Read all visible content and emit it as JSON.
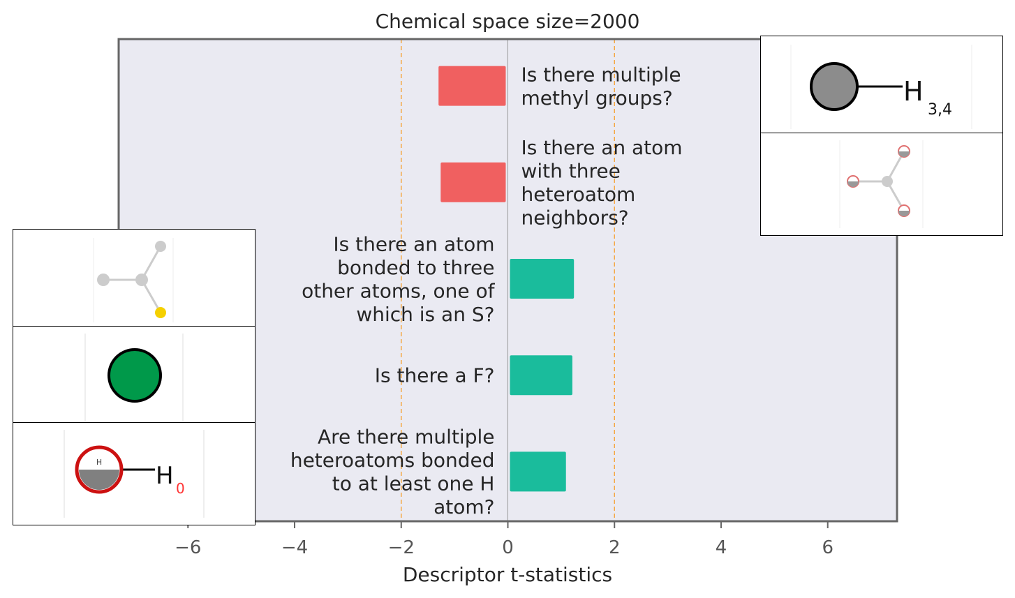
{
  "chart_data": {
    "type": "bar",
    "orientation": "horizontal",
    "title": "Chemical space size=2000",
    "xlabel": "Descriptor t-statistics",
    "ylabel": "",
    "xlim": [
      -7.3,
      7.3
    ],
    "xticks": [
      -6,
      -4,
      -2,
      0,
      2,
      4,
      6
    ],
    "xtick_labels": [
      "−6",
      "−4",
      "−2",
      "0",
      "2",
      "4",
      "6"
    ],
    "significance_lines": [
      -2,
      2
    ],
    "grid": false,
    "bars": [
      {
        "label": "Is there multiple methyl groups?",
        "value": -1.3,
        "color": "#f06060"
      },
      {
        "label": "Is there an atom with three heteroatom neighbors?",
        "value": -1.26,
        "color": "#f06060"
      },
      {
        "label": "Is there an atom bonded to three other atoms, one of which is an S?",
        "value": 1.24,
        "color": "#1abc9c"
      },
      {
        "label": "Is there a F?",
        "value": 1.21,
        "color": "#1abc9c"
      },
      {
        "label": "Are there multiple heteroatoms bonded to at least one H atom?",
        "value": 1.09,
        "color": "#1abc9c"
      }
    ],
    "label_lines": [
      [
        "Is there multiple",
        "methyl groups?"
      ],
      [
        "Is there an atom",
        "with three",
        "heteroatom",
        "neighbors?"
      ],
      [
        "Is there an atom",
        "bonded to three",
        "other atoms, one of",
        "which is an S?"
      ],
      [
        "Is there a F?"
      ],
      [
        "Are there multiple",
        "heteroatoms bonded",
        "to at least one H",
        "atom?"
      ]
    ],
    "colors": {
      "negative": "#f06060",
      "positive": "#1abc9c",
      "plot_background": "#eaeaf2",
      "reference_line": "#f5a742",
      "frame": "#666666"
    }
  },
  "insets": {
    "methyl_h_label": "H",
    "methyl_h_sub": "3,4",
    "heteroatom_h_label": "H",
    "heteroatom_h_sub": "0",
    "heteroatom_small_h": "H"
  }
}
